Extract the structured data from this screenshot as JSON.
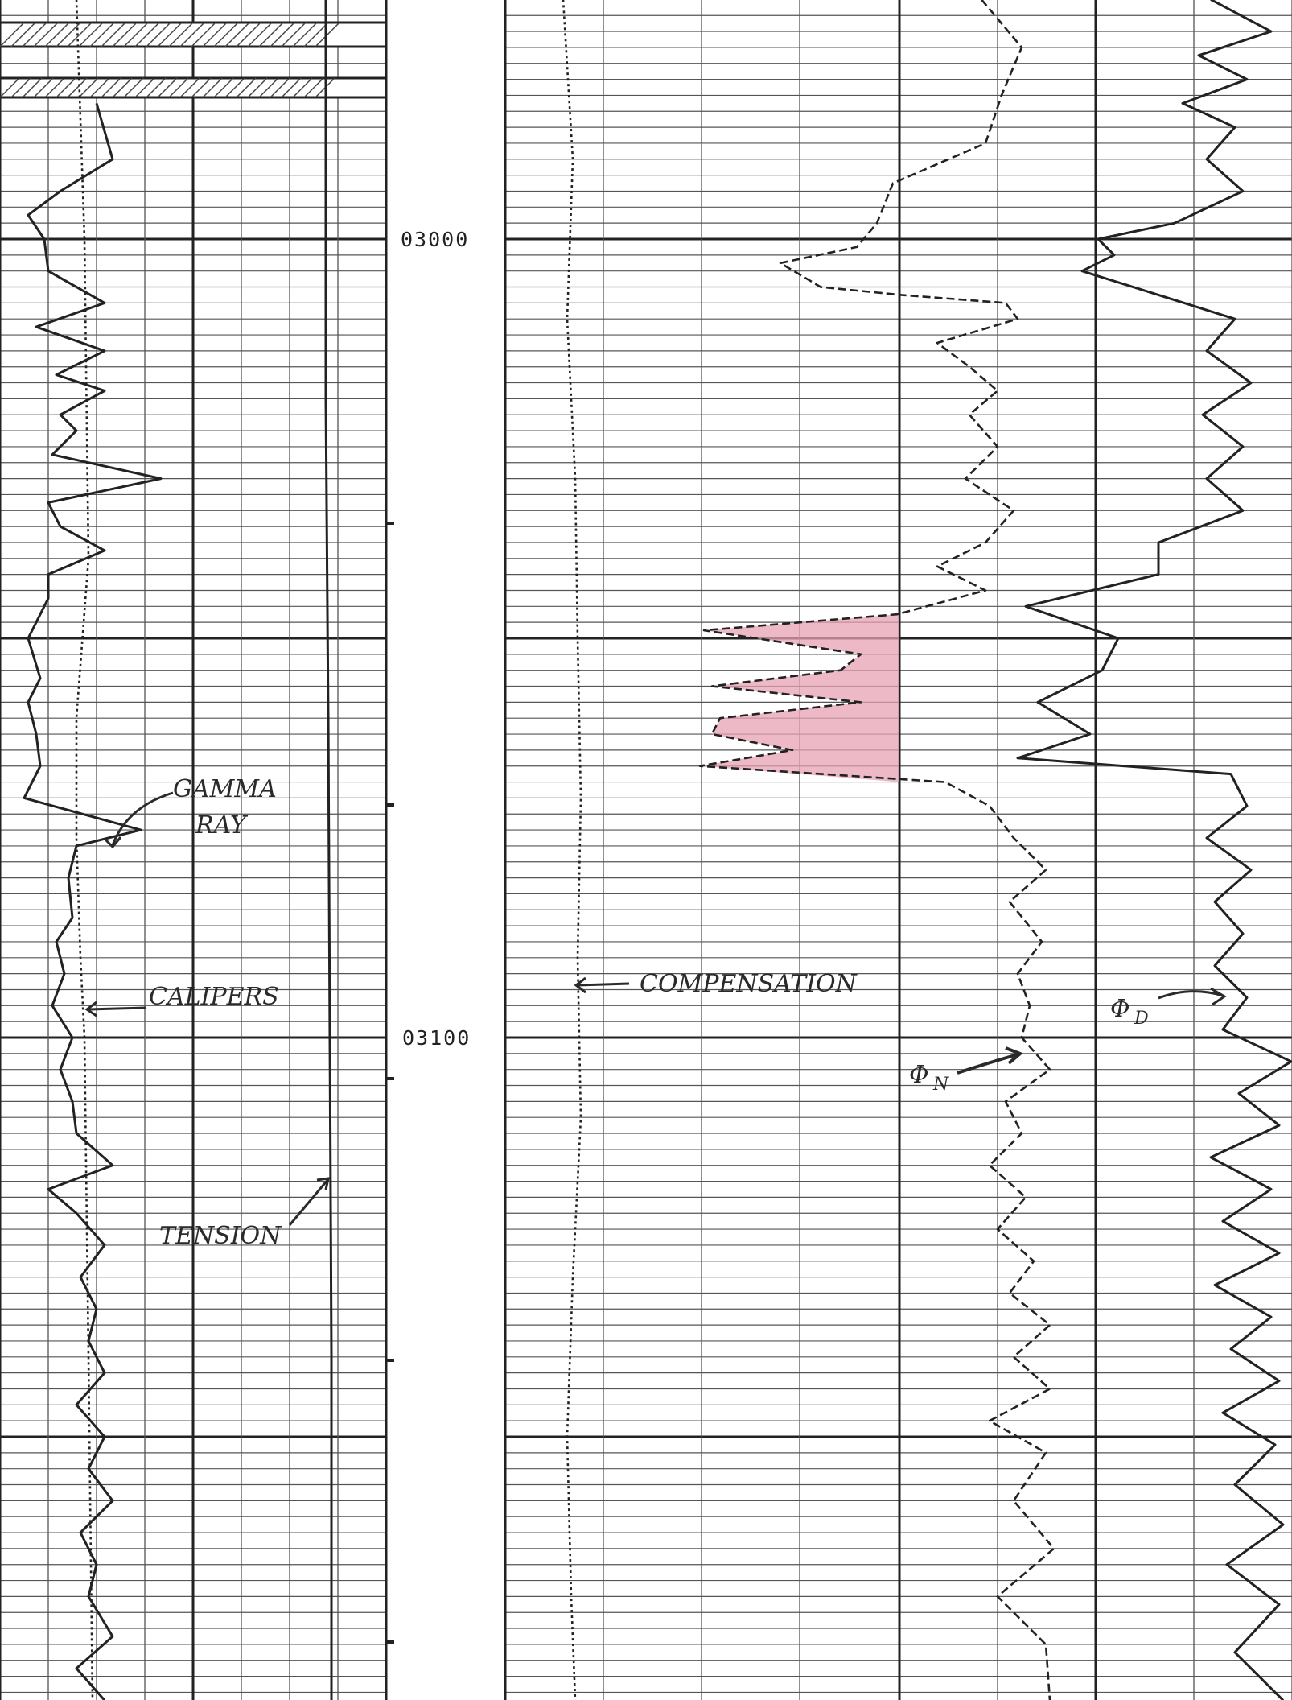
{
  "chart_data": {
    "type": "line",
    "title": "",
    "depth_axis": {
      "labels": [
        "03000",
        "03100"
      ],
      "label_values": [
        3000,
        3100
      ],
      "range": [
        2970,
        3183
      ],
      "direction": "downward"
    },
    "tracks": [
      {
        "name": "track-1",
        "series": [
          {
            "name": "GAMMA RAY",
            "style": "solid",
            "points": [
              [
                2983,
                120
              ],
              [
                2990,
                140
              ],
              [
                2994,
                75
              ],
              [
                2997,
                35
              ],
              [
                3000,
                55
              ],
              [
                3004,
                60
              ],
              [
                3008,
                130
              ],
              [
                3011,
                45
              ],
              [
                3014,
                130
              ],
              [
                3017,
                70
              ],
              [
                3019,
                130
              ],
              [
                3022,
                75
              ],
              [
                3024,
                95
              ],
              [
                3027,
                65
              ],
              [
                3030,
                200
              ],
              [
                3033,
                60
              ],
              [
                3036,
                75
              ],
              [
                3039,
                130
              ],
              [
                3042,
                60
              ],
              [
                3045,
                60
              ],
              [
                3050,
                35
              ],
              [
                3055,
                50
              ],
              [
                3058,
                35
              ],
              [
                3062,
                45
              ],
              [
                3066,
                50
              ],
              [
                3070,
                30
              ],
              [
                3074,
                175
              ],
              [
                3076,
                95
              ],
              [
                3080,
                85
              ],
              [
                3085,
                90
              ],
              [
                3088,
                70
              ],
              [
                3092,
                80
              ],
              [
                3096,
                65
              ],
              [
                3100,
                90
              ],
              [
                3104,
                75
              ],
              [
                3108,
                90
              ],
              [
                3112,
                95
              ],
              [
                3116,
                140
              ],
              [
                3119,
                60
              ],
              [
                3122,
                95
              ],
              [
                3126,
                130
              ],
              [
                3130,
                100
              ],
              [
                3134,
                120
              ],
              [
                3138,
                110
              ],
              [
                3142,
                130
              ],
              [
                3146,
                95
              ],
              [
                3150,
                130
              ],
              [
                3154,
                110
              ],
              [
                3158,
                140
              ],
              [
                3162,
                100
              ],
              [
                3166,
                120
              ],
              [
                3170,
                110
              ],
              [
                3175,
                140
              ],
              [
                3179,
                95
              ],
              [
                3183,
                130
              ]
            ]
          },
          {
            "name": "CALIPERS",
            "style": "dotted",
            "points": [
              [
                2970,
                95
              ],
              [
                3000,
                105
              ],
              [
                3040,
                110
              ],
              [
                3060,
                95
              ],
              [
                3075,
                95
              ],
              [
                3090,
                100
              ],
              [
                3100,
                105
              ],
              [
                3140,
                110
              ],
              [
                3183,
                115
              ]
            ]
          },
          {
            "name": "TENSION",
            "style": "solid",
            "points": [
              [
                2970,
                405
              ],
              [
                3020,
                405
              ],
              [
                3060,
                408
              ],
              [
                3100,
                410
              ],
              [
                3140,
                412
              ],
              [
                3183,
                412
              ]
            ]
          }
        ]
      },
      {
        "name": "track-2",
        "series": [
          {
            "name": "COMPENSATION",
            "style": "dotted",
            "points": [
              [
                2970,
                700
              ],
              [
                2990,
                712
              ],
              [
                3010,
                705
              ],
              [
                3030,
                715
              ],
              [
                3050,
                718
              ],
              [
                3070,
                722
              ],
              [
                3090,
                718
              ],
              [
                3110,
                722
              ],
              [
                3130,
                712
              ],
              [
                3150,
                705
              ],
              [
                3170,
                710
              ],
              [
                3183,
                715
              ]
            ]
          },
          {
            "name": "ΦN",
            "style": "dashed",
            "points": [
              [
                2970,
                1220
              ],
              [
                2976,
                1270
              ],
              [
                2982,
                1245
              ],
              [
                2988,
                1225
              ],
              [
                2993,
                1110
              ],
              [
                2998,
                1090
              ],
              [
                3001,
                1065
              ],
              [
                3003,
                970
              ],
              [
                3006,
                1020
              ],
              [
                3007,
                1120
              ],
              [
                3008,
                1250
              ],
              [
                3010,
                1265
              ],
              [
                3013,
                1165
              ],
              [
                3016,
                1205
              ],
              [
                3019,
                1240
              ],
              [
                3022,
                1205
              ],
              [
                3026,
                1240
              ],
              [
                3030,
                1200
              ],
              [
                3034,
                1260
              ],
              [
                3038,
                1225
              ],
              [
                3041,
                1165
              ],
              [
                3044,
                1225
              ],
              [
                3047,
                1115
              ],
              [
                3049,
                875
              ],
              [
                3052,
                1070
              ],
              [
                3054,
                1045
              ],
              [
                3056,
                885
              ],
              [
                3058,
                1070
              ],
              [
                3060,
                895
              ],
              [
                3062,
                885
              ],
              [
                3064,
                985
              ],
              [
                3066,
                870
              ],
              [
                3068,
                1175
              ],
              [
                3071,
                1230
              ],
              [
                3075,
                1260
              ],
              [
                3079,
                1300
              ],
              [
                3083,
                1255
              ],
              [
                3088,
                1295
              ],
              [
                3092,
                1265
              ],
              [
                3096,
                1280
              ],
              [
                3100,
                1270
              ],
              [
                3104,
                1305
              ],
              [
                3108,
                1250
              ],
              [
                3112,
                1270
              ],
              [
                3116,
                1230
              ],
              [
                3120,
                1275
              ],
              [
                3124,
                1240
              ],
              [
                3128,
                1285
              ],
              [
                3132,
                1255
              ],
              [
                3136,
                1305
              ],
              [
                3140,
                1260
              ],
              [
                3144,
                1305
              ],
              [
                3148,
                1230
              ],
              [
                3152,
                1300
              ],
              [
                3158,
                1260
              ],
              [
                3164,
                1310
              ],
              [
                3170,
                1240
              ],
              [
                3176,
                1300
              ],
              [
                3183,
                1305
              ]
            ]
          },
          {
            "name": "ΦD",
            "style": "solid",
            "points": [
              [
                2970,
                1505
              ],
              [
                2974,
                1580
              ],
              [
                2977,
                1490
              ],
              [
                2980,
                1550
              ],
              [
                2983,
                1470
              ],
              [
                2986,
                1535
              ],
              [
                2990,
                1500
              ],
              [
                2994,
                1545
              ],
              [
                2998,
                1460
              ],
              [
                3000,
                1365
              ],
              [
                3002,
                1385
              ],
              [
                3004,
                1345
              ],
              [
                3007,
                1440
              ],
              [
                3010,
                1535
              ],
              [
                3014,
                1500
              ],
              [
                3018,
                1555
              ],
              [
                3022,
                1495
              ],
              [
                3026,
                1545
              ],
              [
                3030,
                1500
              ],
              [
                3034,
                1545
              ],
              [
                3038,
                1440
              ],
              [
                3042,
                1440
              ],
              [
                3046,
                1275
              ],
              [
                3050,
                1390
              ],
              [
                3054,
                1370
              ],
              [
                3058,
                1290
              ],
              [
                3062,
                1355
              ],
              [
                3065,
                1265
              ],
              [
                3067,
                1530
              ],
              [
                3071,
                1550
              ],
              [
                3075,
                1500
              ],
              [
                3079,
                1555
              ],
              [
                3083,
                1510
              ],
              [
                3087,
                1545
              ],
              [
                3091,
                1510
              ],
              [
                3095,
                1550
              ],
              [
                3099,
                1520
              ],
              [
                3103,
                1605
              ],
              [
                3107,
                1540
              ],
              [
                3111,
                1590
              ],
              [
                3115,
                1505
              ],
              [
                3119,
                1580
              ],
              [
                3123,
                1520
              ],
              [
                3127,
                1590
              ],
              [
                3131,
                1510
              ],
              [
                3135,
                1580
              ],
              [
                3139,
                1530
              ],
              [
                3143,
                1590
              ],
              [
                3147,
                1520
              ],
              [
                3151,
                1585
              ],
              [
                3156,
                1535
              ],
              [
                3161,
                1595
              ],
              [
                3166,
                1525
              ],
              [
                3171,
                1590
              ],
              [
                3177,
                1535
              ],
              [
                3183,
                1595
              ]
            ]
          }
        ]
      }
    ],
    "shaded_zone": {
      "depth_top": 3047,
      "depth_bottom": 3068,
      "color": "#e8a2b3"
    },
    "annotations": [
      {
        "name": "gamma-ray-label",
        "lines": [
          "GAMMA",
          "RAY"
        ]
      },
      {
        "name": "calipers-label",
        "text": "CALIPERS"
      },
      {
        "name": "tension-label",
        "text": "TENSION"
      },
      {
        "name": "compensation-label",
        "text": "COMPENSATION"
      },
      {
        "name": "phi-n-label",
        "symbol": "Φ",
        "sub": "N"
      },
      {
        "name": "phi-d-label",
        "symbol": "Φ",
        "sub": "D"
      }
    ],
    "grid": true,
    "colors": {
      "ink": "#222222",
      "grid": "#555555",
      "fill": "#e8a2b3"
    }
  }
}
